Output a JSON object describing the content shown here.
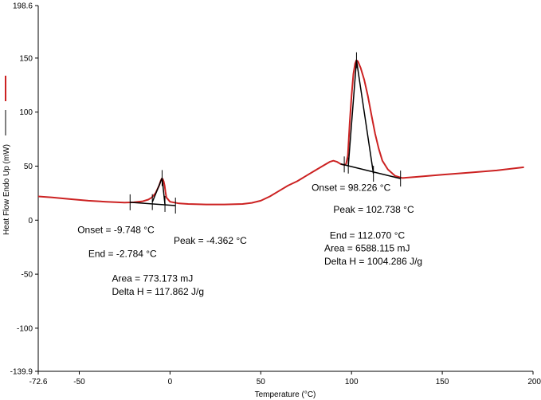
{
  "chart_data": {
    "type": "line",
    "title": "",
    "xlabel": "Temperature (°C)",
    "ylabel": "Heat Flow Endo Up (mW)",
    "xlim": [
      -72.6,
      200
    ],
    "ylim": [
      -139.9,
      198.6
    ],
    "x_ticks": [
      {
        "value": -72.6,
        "label": "-72.6"
      },
      {
        "value": -50,
        "label": "-50"
      },
      {
        "value": 0,
        "label": "0"
      },
      {
        "value": 50,
        "label": "50"
      },
      {
        "value": 100,
        "label": "100"
      },
      {
        "value": 150,
        "label": "150"
      },
      {
        "value": 200,
        "label": "200"
      }
    ],
    "y_ticks": [
      {
        "value": 198.6,
        "label": "198.6"
      },
      {
        "value": 150,
        "label": "150"
      },
      {
        "value": 100,
        "label": "100"
      },
      {
        "value": 50,
        "label": "50"
      },
      {
        "value": 0,
        "label": "0"
      },
      {
        "value": -50,
        "label": "-50"
      },
      {
        "value": -100,
        "label": "-100"
      },
      {
        "value": -139.9,
        "label": "-139.9"
      }
    ],
    "grid": false,
    "legend": "left, vertical",
    "series": [
      {
        "color": "#cc2222",
        "x": [
          -72.6,
          -65,
          -55,
          -45,
          -35,
          -25,
          -20,
          -15,
          -12,
          -10,
          -8,
          -6,
          -5,
          -4.5,
          -4,
          -3.5,
          -3,
          -2.5,
          -2,
          0,
          5,
          10,
          20,
          30,
          40,
          45,
          50,
          55,
          60,
          65,
          70,
          75,
          80,
          85,
          88,
          90,
          92,
          94,
          96,
          97,
          98,
          99,
          100,
          101,
          102,
          102.7,
          103.5,
          105,
          107,
          109,
          111,
          113,
          115,
          117,
          120,
          124,
          128,
          135,
          150,
          165,
          180,
          195
        ],
        "y": [
          22,
          21,
          19.5,
          18,
          17,
          16.3,
          16.5,
          17.5,
          19,
          21,
          25,
          32,
          37,
          38.5,
          38,
          36,
          32,
          26,
          21,
          17,
          15.5,
          15,
          14.5,
          14.5,
          15,
          16,
          18,
          22,
          27,
          32,
          36,
          41,
          46,
          51,
          54,
          55,
          54,
          52,
          51,
          52,
          60,
          90,
          115,
          135,
          145,
          148,
          147,
          141,
          130,
          115,
          97,
          80,
          66,
          55,
          47,
          41,
          39,
          40,
          42,
          44,
          46,
          49
        ]
      }
    ],
    "construction_lines": [
      {
        "x": [
          -22,
          3
        ],
        "y": [
          16.5,
          13.5
        ]
      },
      {
        "x": [
          -9.748,
          -4.362
        ],
        "y": [
          16.7,
          39
        ]
      },
      {
        "x": [
          -4.362,
          -2.784
        ],
        "y": [
          39,
          14.5
        ]
      },
      {
        "x": [
          94,
          127
        ],
        "y": [
          52,
          38.5
        ]
      },
      {
        "x": [
          98.226,
          102.738
        ],
        "y": [
          50.5,
          148
        ]
      },
      {
        "x": [
          102.738,
          112.07
        ],
        "y": [
          148,
          43
        ]
      }
    ],
    "markers": [
      {
        "x": -22,
        "y": 16.5
      },
      {
        "x": -9.748,
        "y": 16.7
      },
      {
        "x": -4.362,
        "y": 39
      },
      {
        "x": -2.784,
        "y": 15
      },
      {
        "x": 3,
        "y": 13.5
      },
      {
        "x": 96,
        "y": 51.6
      },
      {
        "x": 98.226,
        "y": 50.5
      },
      {
        "x": 102.738,
        "y": 148
      },
      {
        "x": 112.07,
        "y": 43
      },
      {
        "x": 127,
        "y": 38.5
      }
    ],
    "annotations": [
      {
        "text": "Onset = -9.748 °C",
        "x": -51,
        "y": -12
      },
      {
        "text": "Peak = -4.362 °C",
        "x": 2,
        "y": -22
      },
      {
        "text": "End = -2.784 °C",
        "x": -45,
        "y": -34
      },
      {
        "text": "Area = 773.173 mJ",
        "x": -32,
        "y": -57
      },
      {
        "text": "Delta H = 117.862 J/g",
        "x": -32,
        "y": -69
      },
      {
        "text": "Onset = 98.226 °C",
        "x": 78,
        "y": 27
      },
      {
        "text": "Peak = 102.738 °C",
        "x": 90,
        "y": 7
      },
      {
        "text": "End = 112.070 °C",
        "x": 88,
        "y": -17
      },
      {
        "text": "Area = 6588.115 mJ",
        "x": 85,
        "y": -29
      },
      {
        "text": "Delta H = 1004.286 J/g",
        "x": 85,
        "y": -41
      }
    ]
  }
}
